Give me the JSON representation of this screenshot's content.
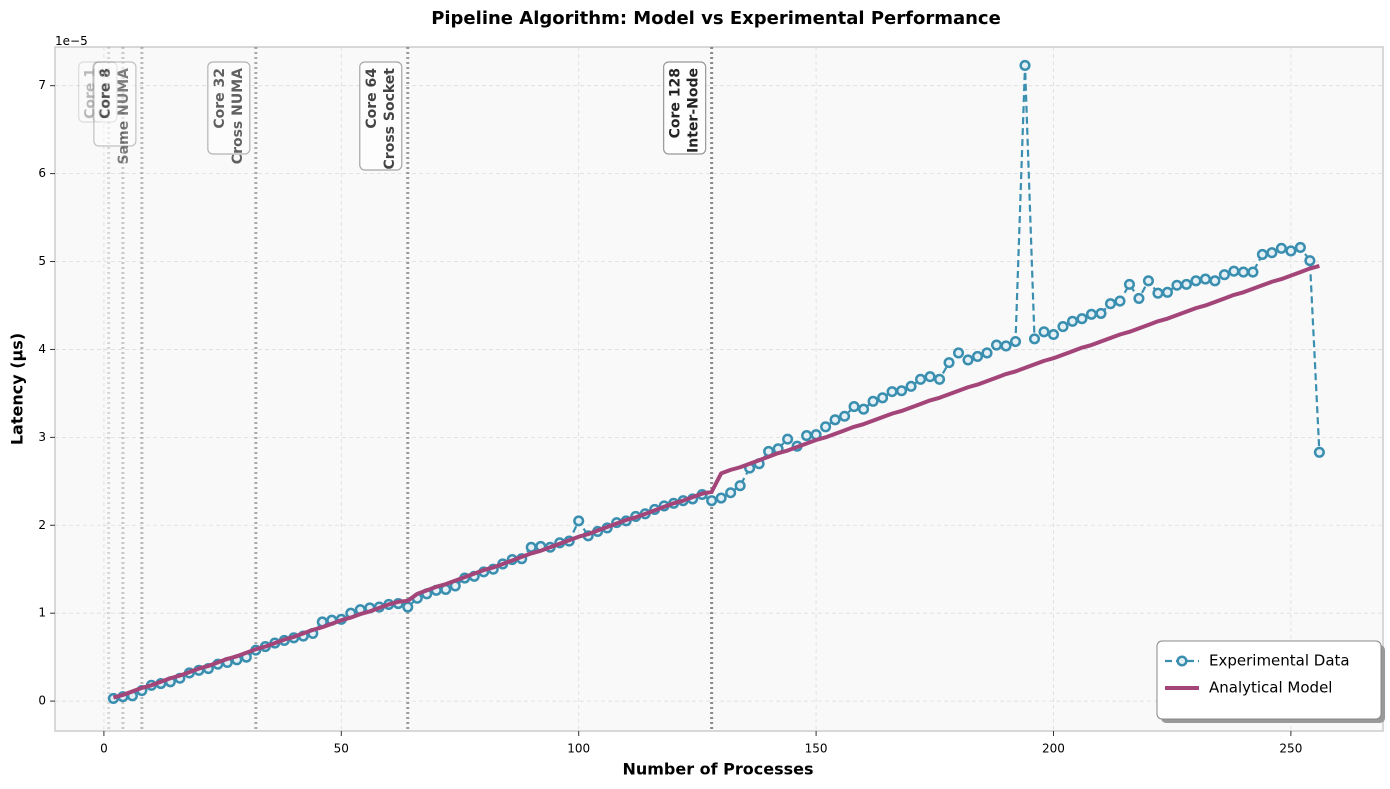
{
  "chart_data": {
    "type": "line",
    "title": "Pipeline Algorithm: Model vs Experimental Performance",
    "x_label": "Number of Processes",
    "y_label": "Latency (µs)",
    "y_offset_label": "1e−5",
    "x": [
      2,
      4,
      6,
      8,
      10,
      12,
      14,
      16,
      18,
      20,
      22,
      24,
      26,
      28,
      30,
      32,
      34,
      36,
      38,
      40,
      42,
      44,
      46,
      48,
      50,
      52,
      54,
      56,
      58,
      60,
      62,
      64,
      66,
      68,
      70,
      72,
      74,
      76,
      78,
      80,
      82,
      84,
      86,
      88,
      90,
      92,
      94,
      96,
      98,
      100,
      102,
      104,
      106,
      108,
      110,
      112,
      114,
      116,
      118,
      120,
      122,
      124,
      126,
      128,
      130,
      132,
      134,
      136,
      138,
      140,
      142,
      144,
      146,
      148,
      150,
      152,
      154,
      156,
      158,
      160,
      162,
      164,
      166,
      168,
      170,
      172,
      174,
      176,
      178,
      180,
      182,
      184,
      186,
      188,
      190,
      192,
      194,
      196,
      198,
      200,
      202,
      204,
      206,
      208,
      210,
      212,
      214,
      216,
      218,
      220,
      222,
      224,
      226,
      228,
      230,
      232,
      234,
      236,
      238,
      240,
      242,
      244,
      246,
      248,
      250,
      252,
      254,
      256
    ],
    "series": [
      {
        "name": "Experimental Data",
        "color": "#3a8fb0",
        "style": "dashed-markers",
        "values": [
          0.03,
          0.05,
          0.06,
          0.12,
          0.18,
          0.2,
          0.22,
          0.26,
          0.32,
          0.35,
          0.37,
          0.42,
          0.44,
          0.47,
          0.5,
          0.58,
          0.62,
          0.66,
          0.69,
          0.72,
          0.74,
          0.77,
          0.9,
          0.92,
          0.93,
          1.0,
          1.04,
          1.06,
          1.07,
          1.1,
          1.11,
          1.07,
          1.17,
          1.22,
          1.26,
          1.27,
          1.31,
          1.4,
          1.42,
          1.47,
          1.5,
          1.56,
          1.61,
          1.62,
          1.75,
          1.76,
          1.75,
          1.8,
          1.82,
          2.05,
          1.88,
          1.93,
          1.97,
          2.03,
          2.05,
          2.1,
          2.13,
          2.18,
          2.22,
          2.25,
          2.28,
          2.3,
          2.35,
          2.28,
          2.31,
          2.37,
          2.45,
          2.65,
          2.7,
          2.84,
          2.87,
          2.98,
          2.9,
          3.02,
          3.03,
          3.12,
          3.2,
          3.24,
          3.35,
          3.32,
          3.41,
          3.45,
          3.52,
          3.53,
          3.58,
          3.66,
          3.69,
          3.66,
          3.85,
          3.96,
          3.88,
          3.92,
          3.96,
          4.05,
          4.04,
          4.09,
          7.23,
          4.12,
          4.2,
          4.17,
          4.26,
          4.32,
          4.35,
          4.4,
          4.41,
          4.52,
          4.55,
          4.74,
          4.58,
          4.78,
          4.64,
          4.65,
          4.73,
          4.74,
          4.78,
          4.8,
          4.78,
          4.85,
          4.89,
          4.88,
          4.88,
          5.08,
          5.1,
          5.15,
          5.12,
          5.16,
          5.01,
          2.83
        ]
      },
      {
        "name": "Analytical Model",
        "color": "#a4457a",
        "style": "solid",
        "values": [
          0.04,
          0.07,
          0.11,
          0.15,
          0.18,
          0.22,
          0.26,
          0.29,
          0.33,
          0.37,
          0.4,
          0.44,
          0.48,
          0.51,
          0.55,
          0.59,
          0.62,
          0.66,
          0.7,
          0.73,
          0.77,
          0.81,
          0.84,
          0.88,
          0.92,
          0.95,
          0.99,
          1.02,
          1.06,
          1.1,
          1.13,
          1.14,
          1.22,
          1.26,
          1.3,
          1.33,
          1.37,
          1.41,
          1.45,
          1.49,
          1.52,
          1.56,
          1.6,
          1.64,
          1.68,
          1.71,
          1.75,
          1.79,
          1.83,
          1.87,
          1.9,
          1.94,
          1.98,
          2.02,
          2.06,
          2.09,
          2.13,
          2.17,
          2.21,
          2.25,
          2.28,
          2.32,
          2.36,
          2.38,
          2.59,
          2.63,
          2.66,
          2.7,
          2.74,
          2.78,
          2.82,
          2.85,
          2.89,
          2.93,
          2.97,
          3.0,
          3.04,
          3.08,
          3.12,
          3.15,
          3.19,
          3.23,
          3.27,
          3.3,
          3.34,
          3.38,
          3.42,
          3.45,
          3.49,
          3.53,
          3.57,
          3.6,
          3.64,
          3.68,
          3.72,
          3.75,
          3.79,
          3.83,
          3.87,
          3.9,
          3.94,
          3.98,
          4.02,
          4.05,
          4.09,
          4.13,
          4.17,
          4.2,
          4.24,
          4.28,
          4.32,
          4.35,
          4.39,
          4.43,
          4.47,
          4.5,
          4.54,
          4.58,
          4.62,
          4.65,
          4.69,
          4.73,
          4.77,
          4.8,
          4.84,
          4.88,
          4.92,
          4.95
        ]
      }
    ],
    "annotations": [
      {
        "x": 1,
        "lines": [
          "Core 1"
        ]
      },
      {
        "x": 4,
        "lines": [
          "Core 4"
        ]
      },
      {
        "x": 8,
        "lines": [
          "Core 8",
          "Same NUMA"
        ]
      },
      {
        "x": 32,
        "lines": [
          "Core 32",
          "Cross NUMA"
        ]
      },
      {
        "x": 64,
        "lines": [
          "Core 64",
          "Cross Socket"
        ]
      },
      {
        "x": 128,
        "lines": [
          "Core 128",
          "Inter-Node"
        ]
      }
    ],
    "xlim": [
      -10.3,
      269.4
    ],
    "xticks": [
      0,
      50,
      100,
      150,
      200,
      250
    ],
    "ylim": [
      -0.34,
      7.44
    ],
    "yticks": [
      0,
      1,
      2,
      3,
      4,
      5,
      6,
      7
    ],
    "grid": true,
    "legend": "lower right"
  }
}
